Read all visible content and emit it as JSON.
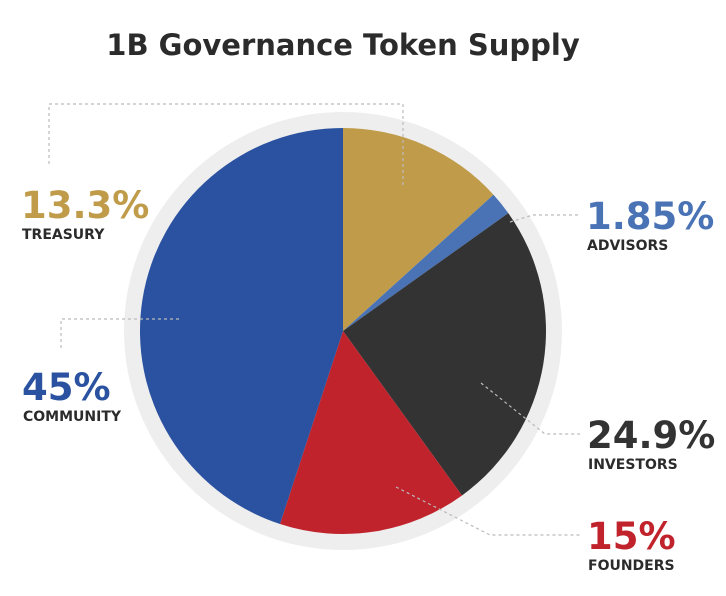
{
  "chart_data": {
    "type": "pie",
    "title": "1B Governance Token Supply",
    "slices": [
      {
        "name": "TREASURY",
        "value": 13.3,
        "label": "13.3%",
        "color": "#bf9b4a"
      },
      {
        "name": "ADVISORS",
        "value": 1.85,
        "label": "1.85%",
        "color": "#4a73b5"
      },
      {
        "name": "INVESTORS",
        "value": 24.9,
        "label": "24.9%",
        "color": "#333333"
      },
      {
        "name": "FOUNDERS",
        "value": 15,
        "label": "15%",
        "color": "#c0232b"
      },
      {
        "name": "COMMUNITY",
        "value": 45,
        "label": "45%",
        "color": "#2a52a0"
      }
    ],
    "colors": {
      "ring": "#eeeeee",
      "leader": "#bbbbbb",
      "title": "#2b2b2b"
    }
  }
}
